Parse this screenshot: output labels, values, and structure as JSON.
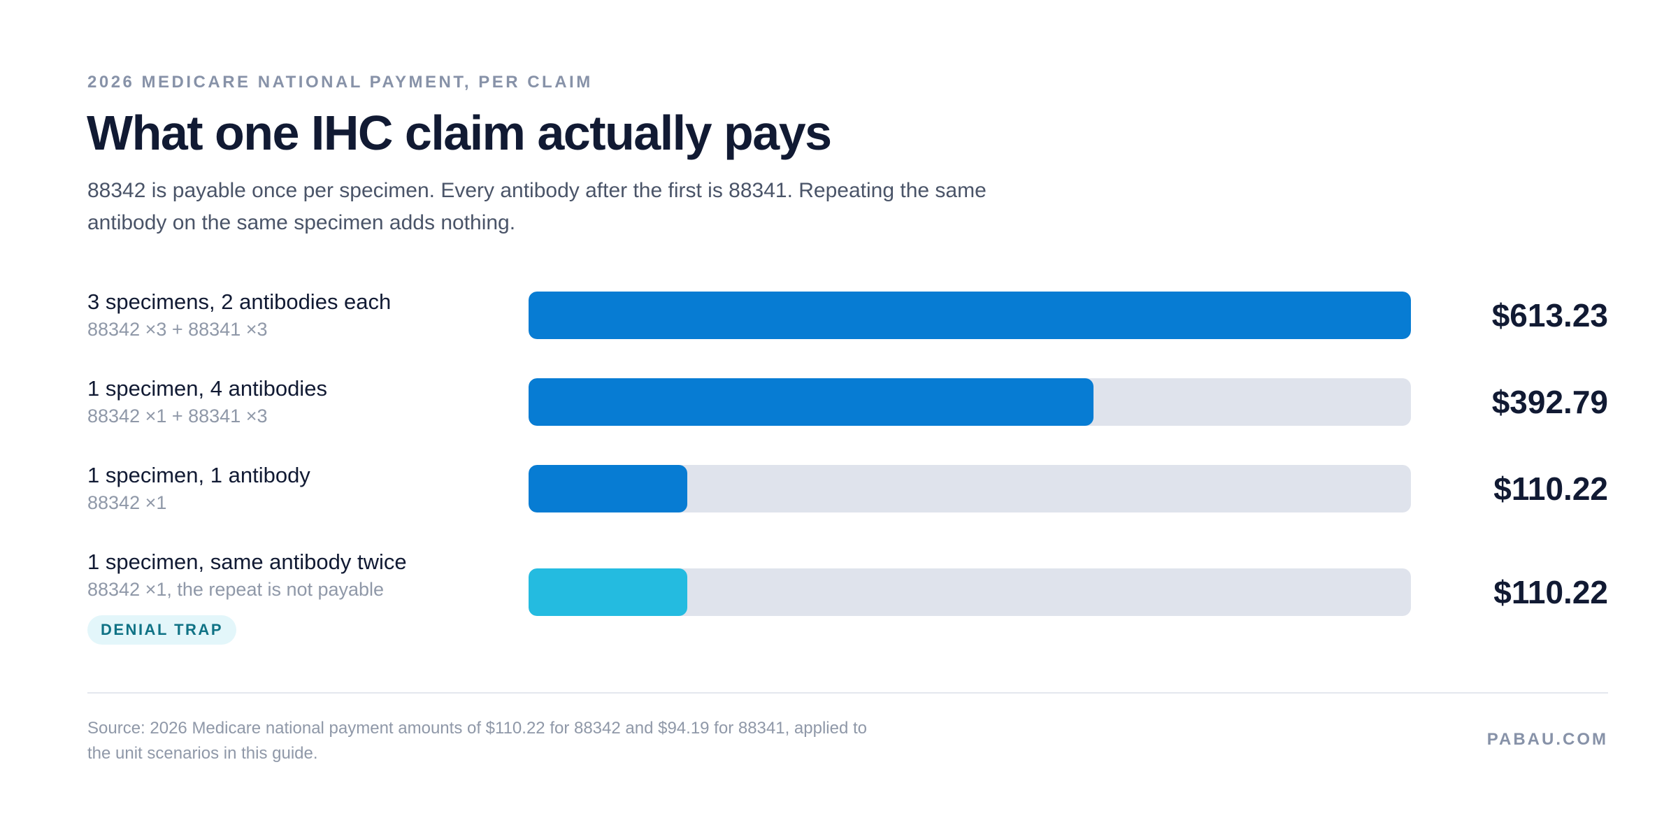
{
  "header": {
    "eyebrow": "2026 MEDICARE NATIONAL PAYMENT, PER CLAIM",
    "title": "What one IHC claim actually pays",
    "subtitle": "88342 is payable once per specimen. Every antibody after the first is 88341. Repeating the same antibody on the same specimen adds nothing."
  },
  "chart_data": {
    "type": "bar",
    "orientation": "horizontal",
    "xlim": [
      0,
      613.23
    ],
    "categories": [
      "3 specimens, 2 antibodies each",
      "1 specimen, 4 antibodies",
      "1 specimen, 1 antibody",
      "1 specimen, same antibody twice"
    ],
    "values": [
      613.23,
      392.79,
      110.22,
      110.22
    ],
    "rows": [
      {
        "label": "3 specimens, 2 antibodies each",
        "formula": "88342 ×3 + 88341 ×3",
        "value": 613.23,
        "value_label": "$613.23",
        "color": "#077cd3",
        "badge": ""
      },
      {
        "label": "1 specimen, 4 antibodies",
        "formula": "88342 ×1 + 88341 ×3",
        "value": 392.79,
        "value_label": "$392.79",
        "color": "#077cd3",
        "badge": ""
      },
      {
        "label": "1 specimen, 1 antibody",
        "formula": "88342 ×1",
        "value": 110.22,
        "value_label": "$110.22",
        "color": "#077cd3",
        "badge": ""
      },
      {
        "label": "1 specimen, same antibody twice",
        "formula": "88342 ×1, the repeat is not payable",
        "value": 110.22,
        "value_label": "$110.22",
        "color": "#24bbe0",
        "badge": "DENIAL TRAP"
      }
    ],
    "track_color": "#dfe3ec"
  },
  "footer": {
    "source": "Source: 2026 Medicare national payment amounts of $110.22 for 88342 and $94.19 for 88341, applied to the unit scenarios in this guide.",
    "brand": "PABAU.COM"
  }
}
